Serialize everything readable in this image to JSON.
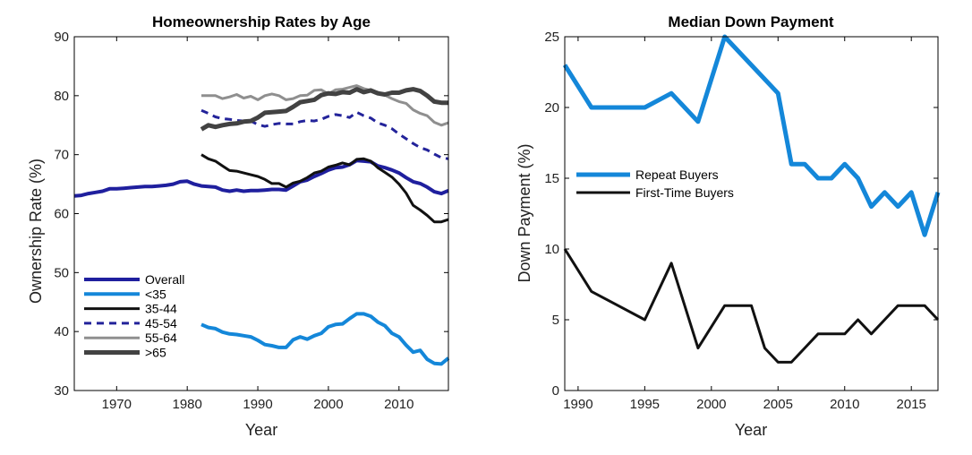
{
  "chart_data": [
    {
      "type": "line",
      "title": "Homeownership Rates by Age",
      "xlabel": "Year",
      "ylabel": "Ownership Rate (%)",
      "xlim": [
        1964,
        2017
      ],
      "ylim": [
        30,
        90
      ],
      "xticks": [
        1970,
        1980,
        1990,
        2000,
        2010
      ],
      "yticks": [
        30,
        40,
        50,
        60,
        70,
        80,
        90
      ],
      "legend_position": "bottom-left",
      "series": [
        {
          "name": "Overall",
          "color": "#1f1f9e",
          "dash": "solid",
          "width": 4,
          "x": [
            1964,
            1965,
            1966,
            1967,
            1968,
            1969,
            1970,
            1971,
            1972,
            1973,
            1974,
            1975,
            1976,
            1977,
            1978,
            1979,
            1980,
            1981,
            1982,
            1983,
            1984,
            1985,
            1986,
            1987,
            1988,
            1989,
            1990,
            1991,
            1992,
            1993,
            1994,
            1995,
            1996,
            1997,
            1998,
            1999,
            2000,
            2001,
            2002,
            2003,
            2004,
            2005,
            2006,
            2007,
            2008,
            2009,
            2010,
            2011,
            2012,
            2013,
            2014,
            2015,
            2016,
            2017
          ],
          "y": [
            63.0,
            63.1,
            63.4,
            63.6,
            63.8,
            64.2,
            64.2,
            64.3,
            64.4,
            64.5,
            64.6,
            64.6,
            64.7,
            64.8,
            65.0,
            65.4,
            65.5,
            65.0,
            64.7,
            64.6,
            64.5,
            64.0,
            63.8,
            64.0,
            63.8,
            63.9,
            63.9,
            64.0,
            64.1,
            64.1,
            64.0,
            64.7,
            65.4,
            65.7,
            66.3,
            66.8,
            67.4,
            67.8,
            67.9,
            68.3,
            69.0,
            68.9,
            68.8,
            68.1,
            67.8,
            67.4,
            66.9,
            66.1,
            65.4,
            65.1,
            64.5,
            63.7,
            63.4,
            63.9
          ]
        },
        {
          "name": "<35",
          "color": "#1487d9",
          "dash": "solid",
          "width": 4,
          "x": [
            1982,
            1983,
            1984,
            1985,
            1986,
            1987,
            1988,
            1989,
            1990,
            1991,
            1992,
            1993,
            1994,
            1995,
            1996,
            1997,
            1998,
            1999,
            2000,
            2001,
            2002,
            2003,
            2004,
            2005,
            2006,
            2007,
            2008,
            2009,
            2010,
            2011,
            2012,
            2013,
            2014,
            2015,
            2016,
            2017
          ],
          "y": [
            41.2,
            40.7,
            40.5,
            39.9,
            39.6,
            39.5,
            39.3,
            39.1,
            38.5,
            37.8,
            37.6,
            37.3,
            37.3,
            38.6,
            39.1,
            38.7,
            39.3,
            39.7,
            40.8,
            41.2,
            41.3,
            42.2,
            43.0,
            43.0,
            42.6,
            41.6,
            41.0,
            39.7,
            39.1,
            37.7,
            36.5,
            36.8,
            35.3,
            34.6,
            34.5,
            35.5
          ]
        },
        {
          "name": "35-44",
          "color": "#111111",
          "dash": "solid",
          "width": 3,
          "x": [
            1982,
            1983,
            1984,
            1985,
            1986,
            1987,
            1988,
            1989,
            1990,
            1991,
            1992,
            1993,
            1994,
            1995,
            1996,
            1997,
            1998,
            1999,
            2000,
            2001,
            2002,
            2003,
            2004,
            2005,
            2006,
            2007,
            2008,
            2009,
            2010,
            2011,
            2012,
            2013,
            2014,
            2015,
            2016,
            2017
          ],
          "y": [
            70.0,
            69.3,
            68.9,
            68.1,
            67.3,
            67.2,
            66.9,
            66.6,
            66.3,
            65.8,
            65.1,
            65.1,
            64.5,
            65.2,
            65.5,
            66.1,
            66.9,
            67.2,
            67.9,
            68.2,
            68.6,
            68.3,
            69.2,
            69.3,
            68.9,
            67.8,
            67.0,
            66.2,
            65.0,
            63.5,
            61.4,
            60.6,
            59.7,
            58.6,
            58.6,
            59.0
          ]
        },
        {
          "name": "45-54",
          "color": "#23239a",
          "dash": "8,6",
          "width": 3,
          "x": [
            1982,
            1983,
            1984,
            1985,
            1986,
            1987,
            1988,
            1989,
            1990,
            1991,
            1992,
            1993,
            1994,
            1995,
            1996,
            1997,
            1998,
            1999,
            2000,
            2001,
            2002,
            2003,
            2004,
            2005,
            2006,
            2007,
            2008,
            2009,
            2010,
            2011,
            2012,
            2013,
            2014,
            2015,
            2016,
            2017
          ],
          "y": [
            77.5,
            77.0,
            76.4,
            76.1,
            76.0,
            75.8,
            75.7,
            75.7,
            75.1,
            74.8,
            75.1,
            75.3,
            75.2,
            75.2,
            75.6,
            75.8,
            75.7,
            76.0,
            76.5,
            76.8,
            76.6,
            76.3,
            77.2,
            76.6,
            76.2,
            75.4,
            75.0,
            74.4,
            73.5,
            72.7,
            71.9,
            71.2,
            70.8,
            70.1,
            69.5,
            69.3
          ]
        },
        {
          "name": "55-64",
          "color": "#8f8f8f",
          "dash": "solid",
          "width": 3,
          "x": [
            1982,
            1983,
            1984,
            1985,
            1986,
            1987,
            1988,
            1989,
            1990,
            1991,
            1992,
            1993,
            1994,
            1995,
            1996,
            1997,
            1998,
            1999,
            2000,
            2001,
            2002,
            2003,
            2004,
            2005,
            2006,
            2007,
            2008,
            2009,
            2010,
            2011,
            2012,
            2013,
            2014,
            2015,
            2016,
            2017
          ],
          "y": [
            80.0,
            80.0,
            80.0,
            79.5,
            79.8,
            80.2,
            79.6,
            79.9,
            79.3,
            80.0,
            80.3,
            80.0,
            79.3,
            79.5,
            80.0,
            80.1,
            80.9,
            81.0,
            80.3,
            81.0,
            81.1,
            81.4,
            81.7,
            81.2,
            80.9,
            80.6,
            80.1,
            79.5,
            79.0,
            78.7,
            77.6,
            77.0,
            76.6,
            75.5,
            75.0,
            75.4
          ]
        },
        {
          "name": ">65",
          "color": "#424242",
          "dash": "solid",
          "width": 5,
          "x": [
            1982,
            1983,
            1984,
            1985,
            1986,
            1987,
            1988,
            1989,
            1990,
            1991,
            1992,
            1993,
            1994,
            1995,
            1996,
            1997,
            1998,
            1999,
            2000,
            2001,
            2002,
            2003,
            2004,
            2005,
            2006,
            2007,
            2008,
            2009,
            2010,
            2011,
            2012,
            2013,
            2014,
            2015,
            2016,
            2017
          ],
          "y": [
            74.3,
            75.0,
            74.7,
            75.0,
            75.2,
            75.3,
            75.6,
            75.7,
            76.3,
            77.1,
            77.2,
            77.3,
            77.4,
            78.1,
            78.9,
            79.1,
            79.3,
            80.1,
            80.4,
            80.3,
            80.6,
            80.5,
            81.1,
            80.6,
            80.9,
            80.4,
            80.2,
            80.5,
            80.5,
            80.9,
            81.1,
            80.8,
            80.0,
            79.0,
            78.8,
            78.8
          ]
        }
      ]
    },
    {
      "type": "line",
      "title": "Median Down Payment",
      "xlabel": "Year",
      "ylabel": "Down Payment (%)",
      "xlim": [
        1989,
        2017
      ],
      "ylim": [
        0,
        25
      ],
      "xticks": [
        1990,
        1995,
        2000,
        2005,
        2010,
        2015
      ],
      "yticks": [
        0,
        5,
        10,
        15,
        20,
        25
      ],
      "legend_position": "middle-left",
      "series": [
        {
          "name": "Repeat Buyers",
          "color": "#1487d9",
          "dash": "solid",
          "width": 5,
          "x": [
            1989,
            1991,
            1993,
            1995,
            1997,
            1999,
            2001,
            2003,
            2005,
            2006,
            2007,
            2008,
            2009,
            2010,
            2011,
            2012,
            2013,
            2014,
            2015,
            2016,
            2017
          ],
          "y": [
            23,
            20,
            20,
            20,
            21,
            19,
            25,
            23,
            21,
            16,
            16,
            15,
            15,
            16,
            15,
            13,
            14,
            13,
            14,
            11,
            14
          ]
        },
        {
          "name": "First-Time Buyers",
          "color": "#111111",
          "dash": "solid",
          "width": 3,
          "x": [
            1989,
            1991,
            1993,
            1995,
            1997,
            1999,
            2001,
            2003,
            2004,
            2005,
            2006,
            2007,
            2008,
            2009,
            2010,
            2011,
            2012,
            2013,
            2014,
            2015,
            2016,
            2017
          ],
          "y": [
            10,
            7,
            6,
            5,
            9,
            3,
            6,
            6,
            3,
            2,
            2,
            3,
            4,
            4,
            4,
            5,
            4,
            5,
            6,
            6,
            6,
            5
          ]
        }
      ]
    }
  ]
}
